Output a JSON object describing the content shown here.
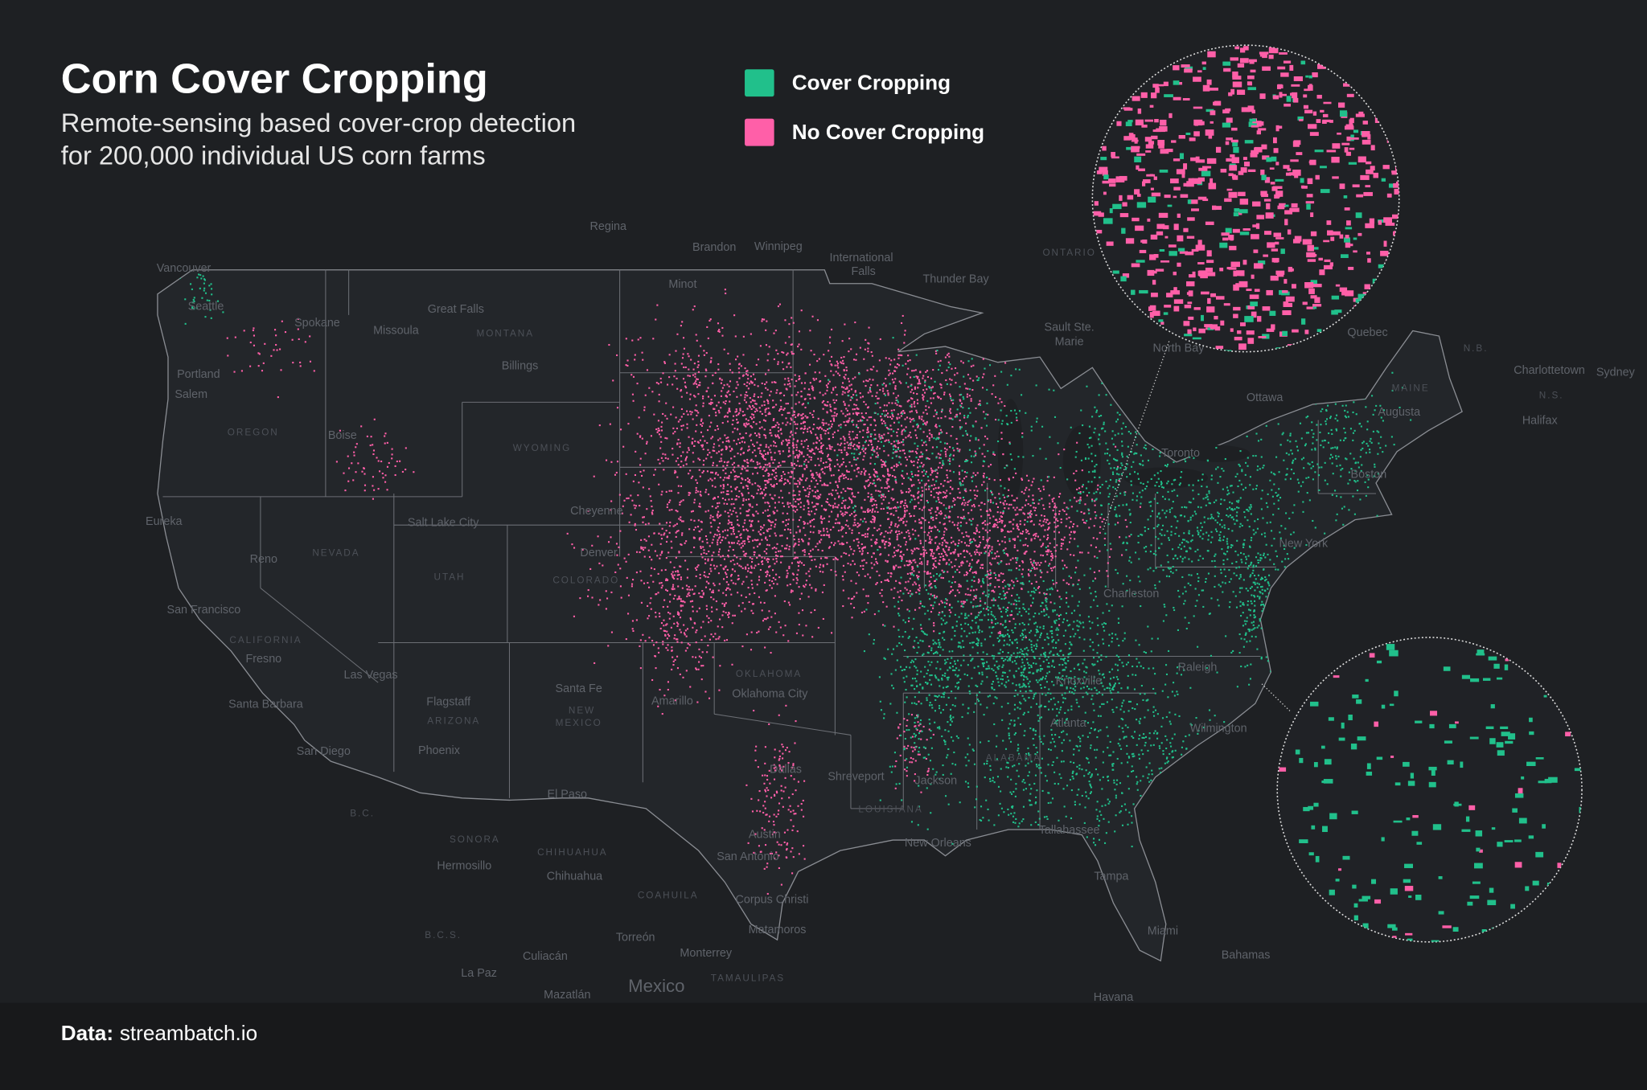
{
  "header": {
    "title": "Corn Cover Cropping",
    "subtitle": [
      "Remote-sensing based cover-crop detection",
      "for 200,000 individual US corn farms"
    ]
  },
  "legend": [
    {
      "label": "Cover Cropping",
      "color": "#21c08b"
    },
    {
      "label": "No Cover Cropping",
      "color": "#ff5fa8"
    }
  ],
  "places": [
    "Regina",
    "Brandon",
    "Winnipeg",
    "International",
    "Falls",
    "Thunder Bay",
    "ONTARIO",
    "Vancouver",
    "Seattle",
    "Spokane",
    "Great Falls",
    "Missoula",
    "MONTANA",
    "Minot",
    "Billings",
    "Portland",
    "Salem",
    "OREGON",
    "Boise",
    "WYOMING",
    "Sault Ste.",
    "Marie",
    "North Bay",
    "Quebec",
    "Ottawa",
    "N.B.",
    "Charlottetown",
    "Sydney",
    "N.S.",
    "Halifax",
    "MAINE",
    "Augusta",
    "Toronto",
    "Boston",
    "New York",
    "Eureka",
    "Salt Lake City",
    "Cheyenne",
    "Denver",
    "NEVADA",
    "Reno",
    "UTAH",
    "COLORADO",
    "San Francisco",
    "CALIFORNIA",
    "Fresno",
    "Las Vegas",
    "Charleston",
    "OKLAHOMA",
    "Oklahoma City",
    "Santa Fe",
    "NEW",
    "MEXICO",
    "Flagstaff",
    "ARIZONA",
    "Amarillo",
    "Santa Barbara",
    "Phoenix",
    "San Diego",
    "Raleigh",
    "Knoxville",
    "Atlanta",
    "Wilmington",
    "ALABAMA",
    "Dallas",
    "Shreveport",
    "Jackson",
    "LOUISIANA",
    "El Paso",
    "B.C.",
    "SONORA",
    "CHIHUAHUA",
    "Hermosillo",
    "Chihuahua",
    "Austin",
    "San Antonio",
    "New Orleans",
    "Tallahassee",
    "Tampa",
    "COAHUILA",
    "Corpus Christi",
    "Matamoros",
    "Miami",
    "Torreón",
    "B.C.S.",
    "Monterrey",
    "Bahamas",
    "Culiacán",
    "La Paz",
    "TAMAULIPAS",
    "Mexico",
    "Mazatlán",
    "Havana"
  ],
  "footer": {
    "label": "Data:",
    "source": "streambatch.io"
  }
}
